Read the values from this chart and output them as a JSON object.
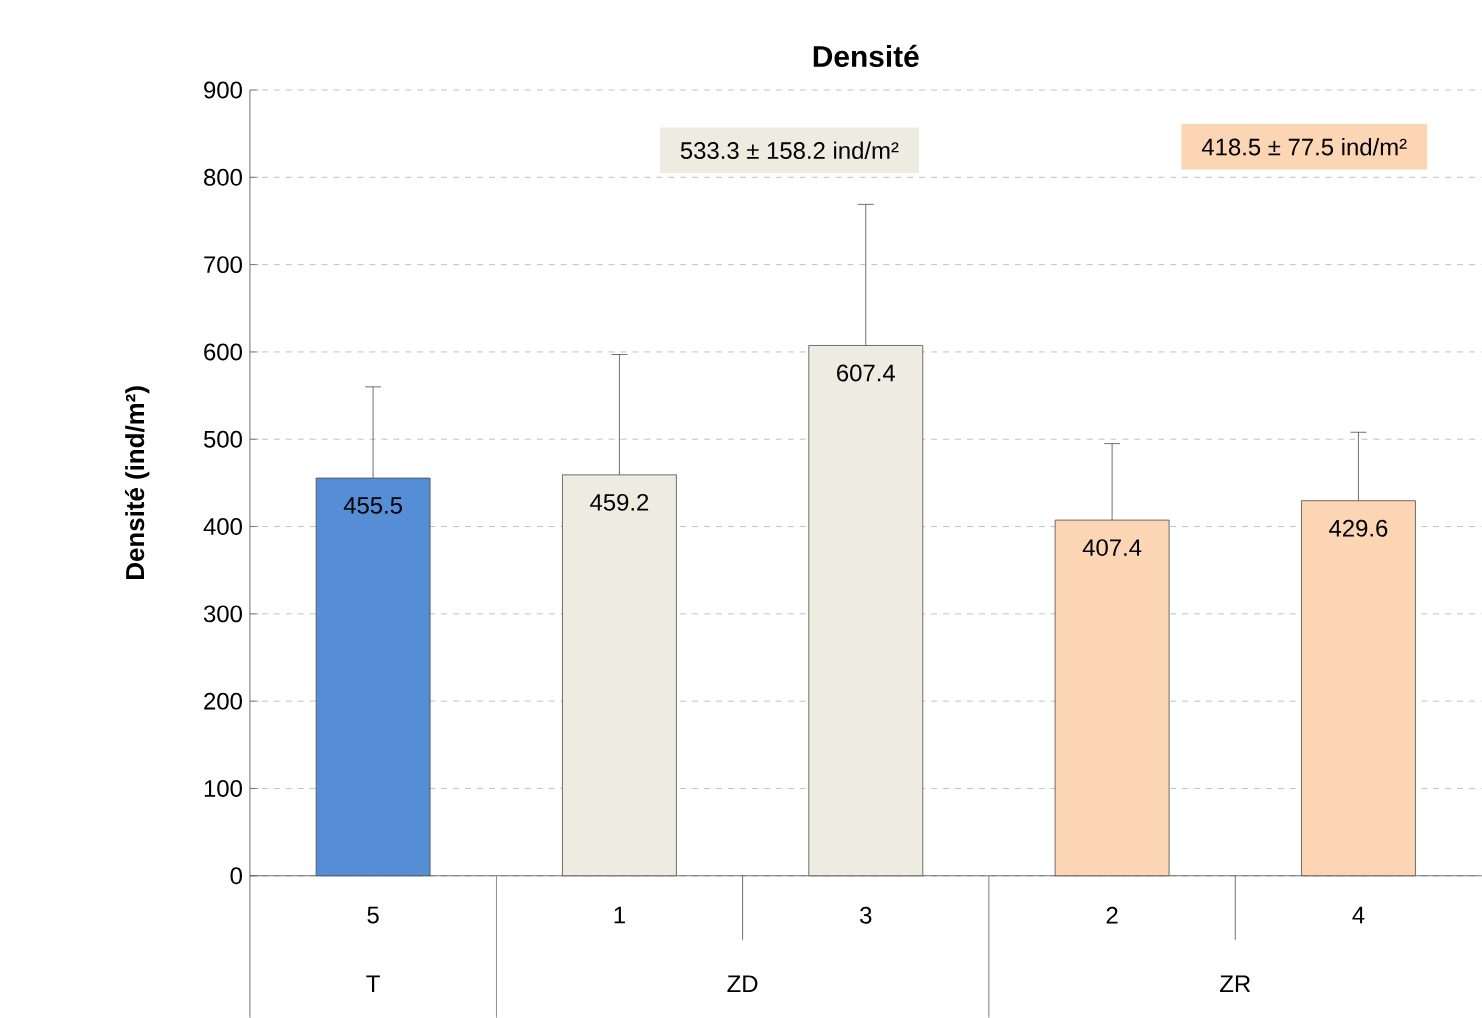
{
  "chart_data": {
    "type": "bar",
    "title": "Densité",
    "ylabel": "Densité (ind/m²)",
    "categories": [
      "5",
      "1",
      "3",
      "2",
      "4"
    ],
    "values": [
      455.5,
      459.2,
      607.4,
      407.4,
      429.6
    ],
    "errors": [
      [
        455.5,
        560
      ],
      [
        459.2,
        597
      ],
      [
        607.4,
        769
      ],
      [
        407.4,
        495
      ],
      [
        429.6,
        508
      ]
    ],
    "colors": [
      "#558ed5",
      "#eeece1",
      "#eeece1",
      "#fcd5b5",
      "#fcd5b5"
    ],
    "data_labels": true,
    "ylim": [
      0,
      900
    ],
    "yticks": [
      0,
      100,
      200,
      300,
      400,
      500,
      600,
      700,
      800,
      900
    ],
    "grid": "y",
    "annotations": [
      "T",
      "ZD",
      "ZR",
      "533.3 ± 158.2 ind/m²",
      "418.5 ± 77.5 ind/m²"
    ]
  }
}
